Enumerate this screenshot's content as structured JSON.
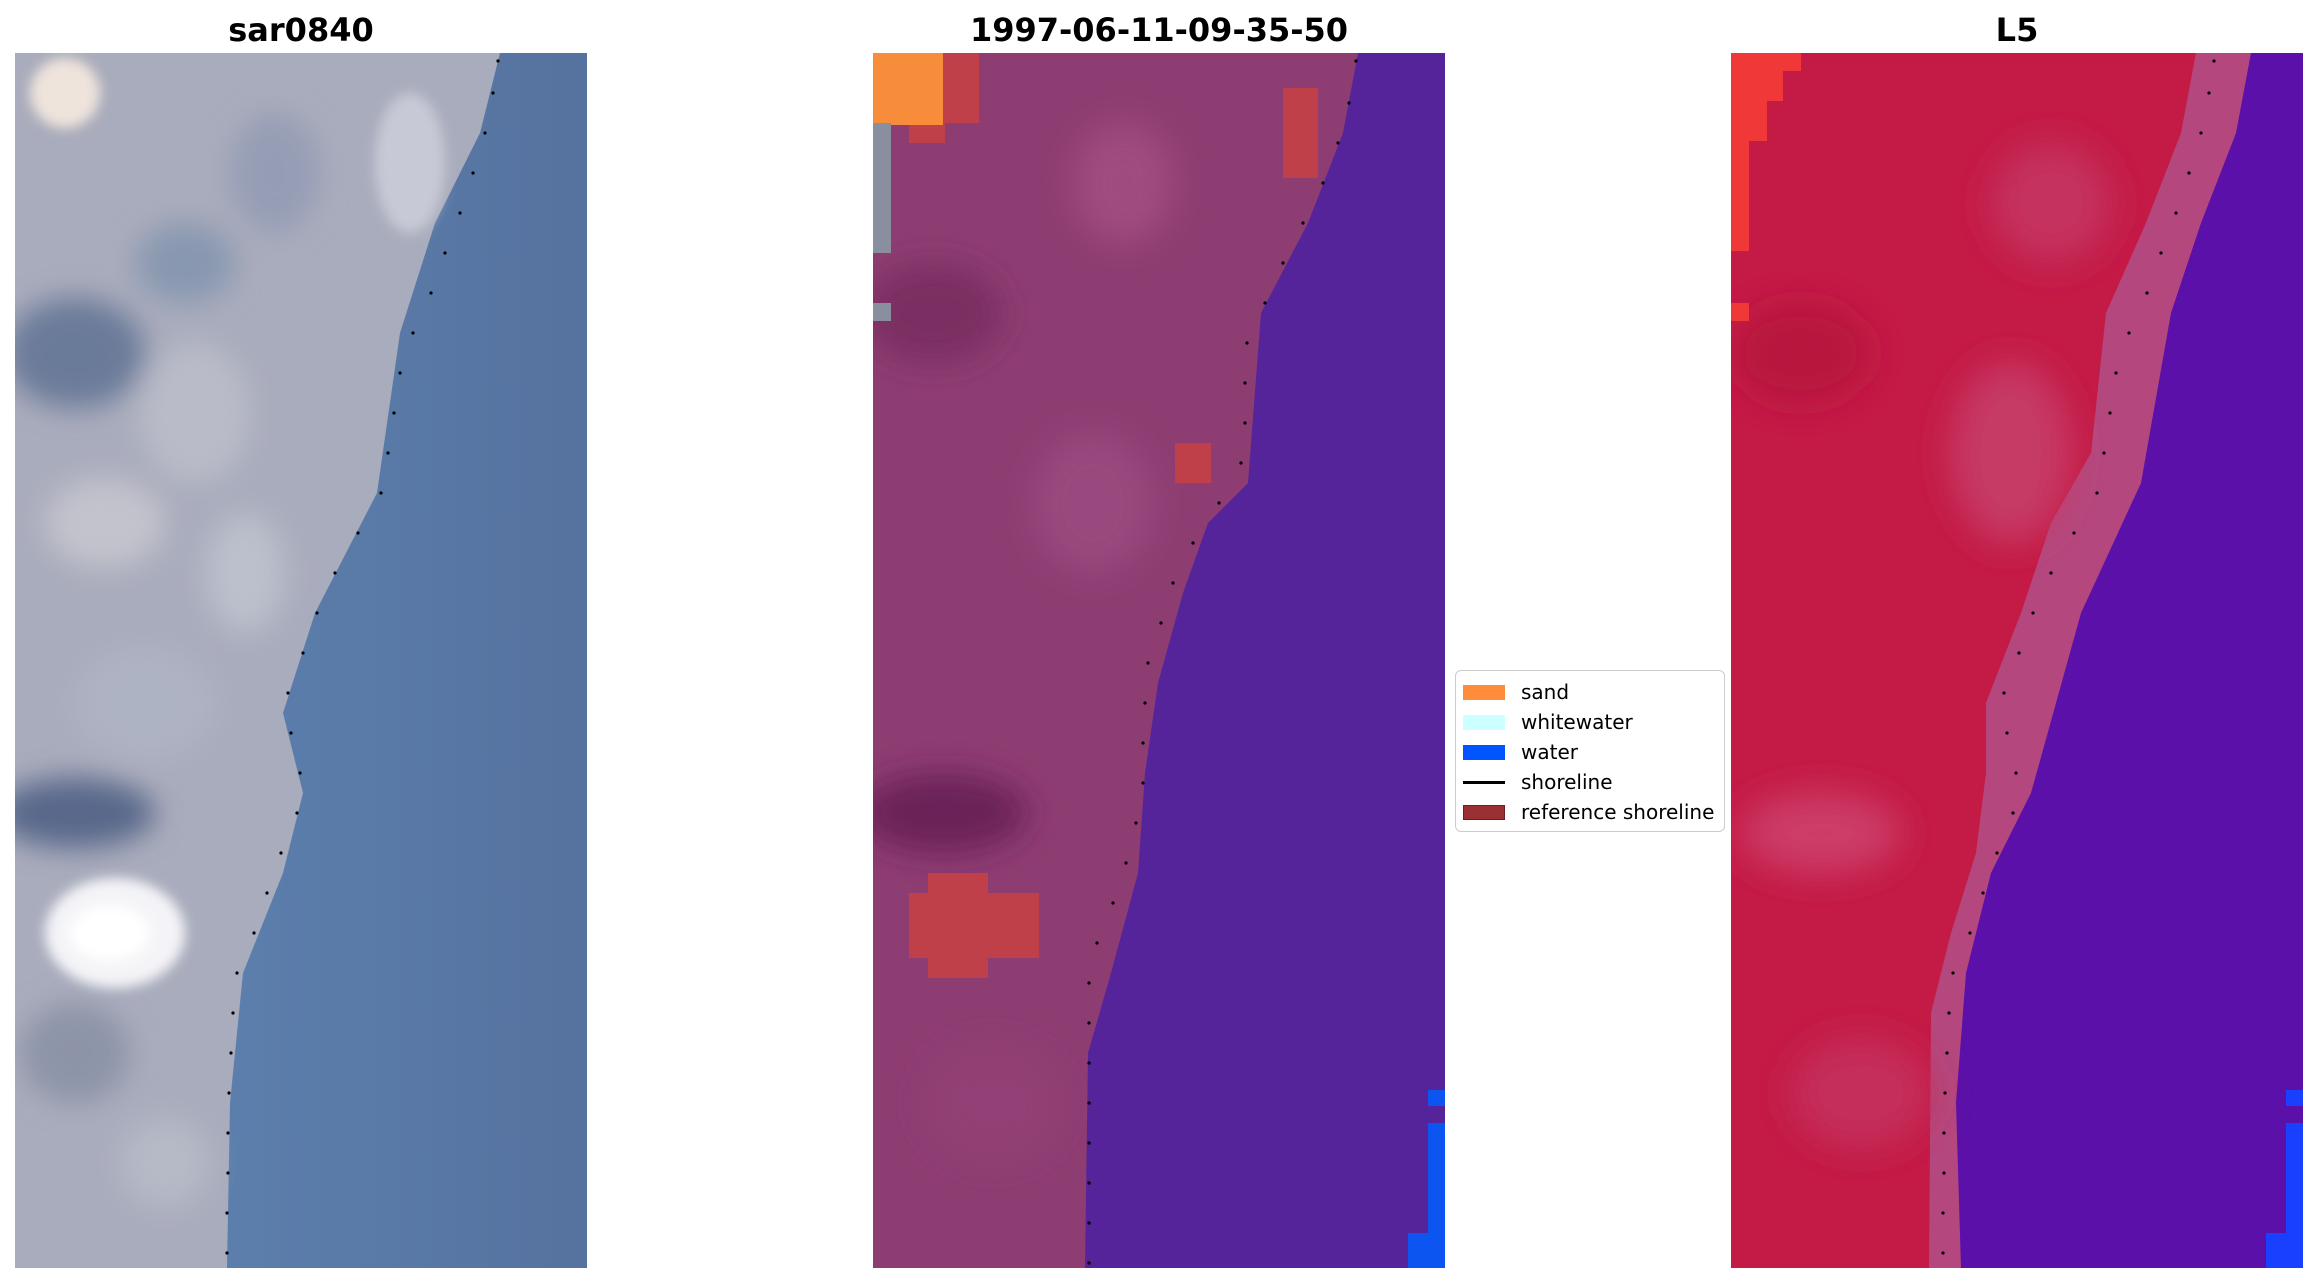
{
  "panels": [
    {
      "title": "sar0840",
      "view": "rgb-image"
    },
    {
      "title": "1997-06-11-09-35-50",
      "view": "classified-image"
    },
    {
      "title": "L5",
      "view": "index-image"
    }
  ],
  "legend": {
    "location": "center-right of middle panel",
    "items": [
      {
        "label": "sand",
        "color": "#ff8c3a",
        "type": "patch"
      },
      {
        "label": "whitewater",
        "color": "#ccffff",
        "type": "patch"
      },
      {
        "label": "water",
        "color": "#0055ff",
        "type": "patch"
      },
      {
        "label": "shoreline",
        "color": "#000000",
        "type": "line"
      },
      {
        "label": "reference shoreline",
        "color": "#9b3034",
        "type": "patch"
      }
    ]
  },
  "colors": {
    "land_rgb": "#a4a8b8",
    "ocean_rgb": "#5a7aa8",
    "land_classified": "#8e3d72",
    "water_classified": "#55249a",
    "land_index": "#c41a46",
    "water_index": "#5a0fa8"
  }
}
